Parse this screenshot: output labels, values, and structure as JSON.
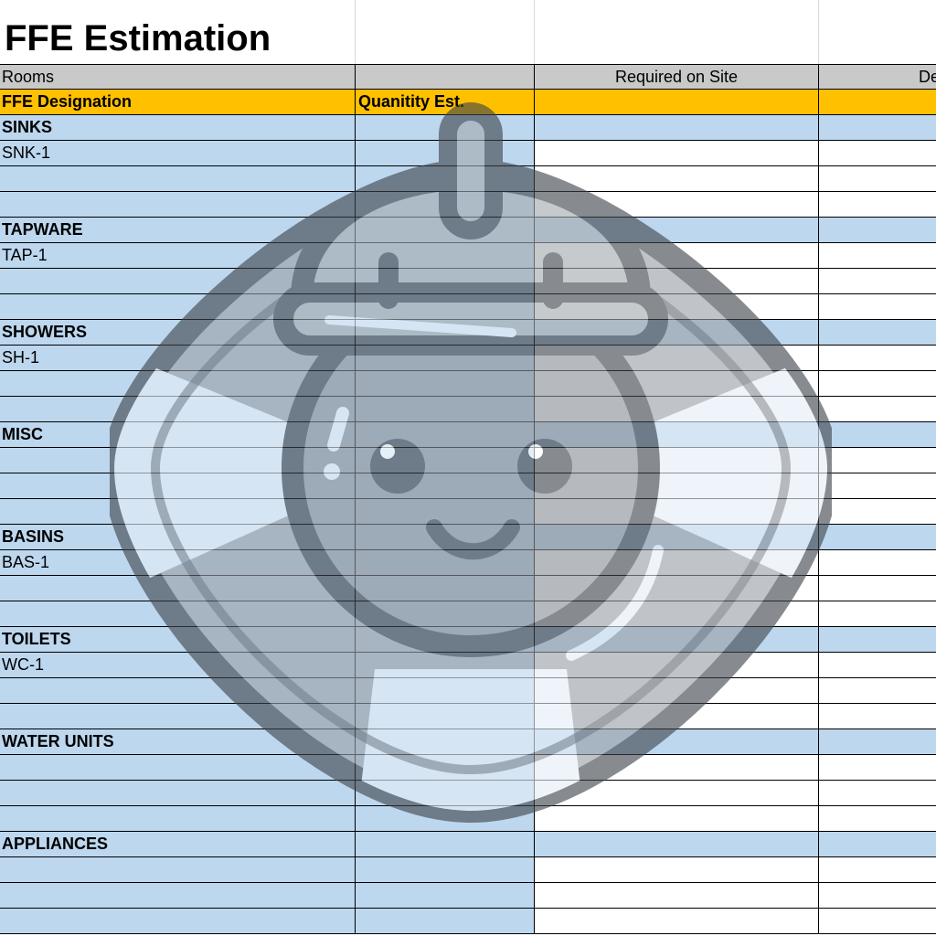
{
  "sheet": {
    "title": "FFE Estimation",
    "header_row_1": {
      "col_a": "Rooms",
      "col_b": "",
      "col_c": "Required on Site",
      "col_d": "De"
    },
    "header_row_2": {
      "col_a": "FFE Designation",
      "col_b": "Quanitity Est.",
      "col_c": "",
      "col_d": ""
    },
    "rows": [
      {
        "label": "SINKS",
        "type": "category",
        "section_fill": "blue"
      },
      {
        "label": "SNK-1",
        "type": "item",
        "section_fill": "white"
      },
      {
        "label": "",
        "type": "item",
        "section_fill": "white"
      },
      {
        "label": "",
        "type": "item",
        "section_fill": "white"
      },
      {
        "label": "TAPWARE",
        "type": "category",
        "section_fill": "blue"
      },
      {
        "label": "TAP-1",
        "type": "item",
        "section_fill": "white"
      },
      {
        "label": "",
        "type": "item",
        "section_fill": "white"
      },
      {
        "label": "",
        "type": "item",
        "section_fill": "white"
      },
      {
        "label": "SHOWERS",
        "type": "category",
        "section_fill": "blue"
      },
      {
        "label": "SH-1",
        "type": "item",
        "section_fill": "white"
      },
      {
        "label": "",
        "type": "item",
        "section_fill": "white"
      },
      {
        "label": "",
        "type": "item",
        "section_fill": "white"
      },
      {
        "label": "MISC",
        "type": "category",
        "section_fill": "blue"
      },
      {
        "label": "",
        "type": "item",
        "section_fill": "white"
      },
      {
        "label": "",
        "type": "item",
        "section_fill": "white"
      },
      {
        "label": "",
        "type": "item",
        "section_fill": "white"
      },
      {
        "label": "BASINS",
        "type": "category",
        "section_fill": "blue"
      },
      {
        "label": "BAS-1",
        "type": "item",
        "section_fill": "white"
      },
      {
        "label": "",
        "type": "item",
        "section_fill": "white"
      },
      {
        "label": "",
        "type": "item",
        "section_fill": "white"
      },
      {
        "label": "TOILETS",
        "type": "category",
        "section_fill": "blue"
      },
      {
        "label": "WC-1",
        "type": "item",
        "section_fill": "white"
      },
      {
        "label": "",
        "type": "item",
        "section_fill": "white"
      },
      {
        "label": "",
        "type": "item",
        "section_fill": "white"
      },
      {
        "label": "WATER UNITS",
        "type": "category",
        "section_fill": "blue"
      },
      {
        "label": "",
        "type": "item",
        "section_fill": "white"
      },
      {
        "label": "",
        "type": "item",
        "section_fill": "white"
      },
      {
        "label": "",
        "type": "item",
        "section_fill": "white"
      },
      {
        "label": "APPLIANCES",
        "type": "category",
        "section_fill": "blue"
      },
      {
        "label": "",
        "type": "item",
        "section_fill": "white"
      },
      {
        "label": "",
        "type": "item",
        "section_fill": "white"
      },
      {
        "label": "",
        "type": "item",
        "section_fill": "white"
      }
    ]
  },
  "colors": {
    "header_gray": "#c9c9c9",
    "header_gold": "#ffc000",
    "cell_blue": "#bdd7ee",
    "mascot_gray": "#5f6369"
  },
  "overlay": {
    "icon": "hard-hat-lifebuoy-mascot-icon"
  }
}
